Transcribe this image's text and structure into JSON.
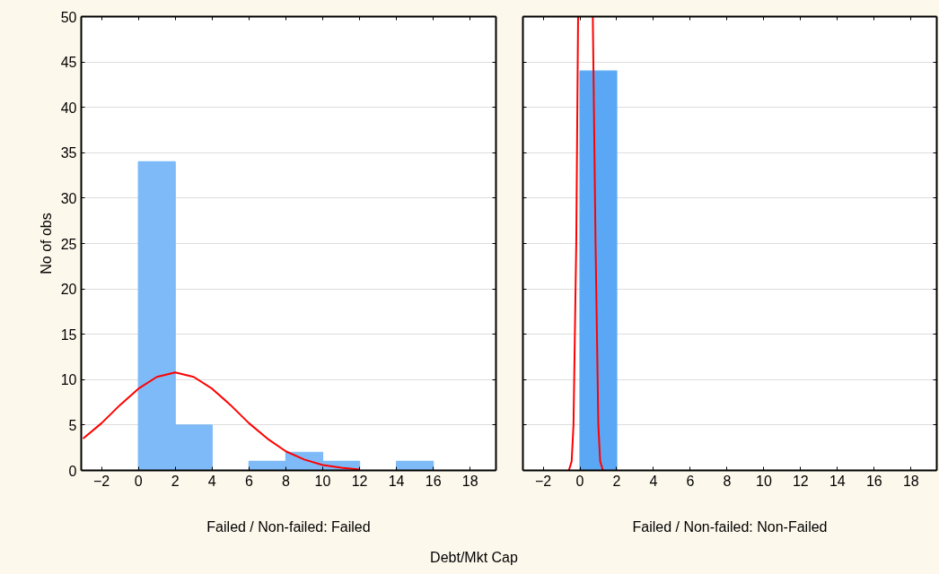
{
  "chart_data": [
    {
      "type": "histogram",
      "xlabel": "Failed / Non-failed: Failed",
      "ylabel": "No of obs",
      "annotations": [
        "Debt/Mkt Cap"
      ],
      "bins": [
        -2,
        0,
        2,
        4,
        6,
        8,
        10,
        12,
        14,
        16,
        18
      ],
      "values": [
        0,
        34,
        5,
        0,
        1,
        2,
        1,
        0,
        1,
        0
      ],
      "color": "#7dbaf7",
      "series": [
        {
          "type": "line",
          "color": "#ff0000",
          "x": [
            -3,
            -2,
            -1,
            0,
            1,
            2,
            3,
            4,
            5,
            6,
            7,
            8,
            9,
            10,
            11,
            12
          ],
          "values": [
            3.5,
            5.2,
            7.2,
            9.0,
            10.3,
            10.8,
            10.3,
            9.0,
            7.2,
            5.2,
            3.5,
            2.1,
            1.2,
            0.6,
            0.3,
            0.1
          ]
        }
      ],
      "xlim": [
        -3.1,
        19.4
      ],
      "ylim": [
        0,
        50
      ],
      "xticks": [
        -2,
        0,
        2,
        4,
        6,
        8,
        10,
        12,
        14,
        16,
        18
      ],
      "yticks": [
        0,
        5,
        10,
        15,
        20,
        25,
        30,
        35,
        40,
        45,
        50
      ],
      "grid": "y"
    },
    {
      "type": "histogram",
      "xlabel": "Failed / Non-failed: Non-Failed",
      "bins": [
        -2,
        0,
        2,
        4,
        6,
        8,
        10,
        12,
        14,
        16,
        18
      ],
      "values": [
        0,
        44,
        0,
        0,
        0,
        0,
        0,
        0,
        0,
        0
      ],
      "color": "#5aa8f5",
      "series": [
        {
          "type": "line",
          "color": "#ff0000",
          "x": [
            -0.6,
            -0.45,
            -0.35,
            -0.2,
            -0.1,
            0.3,
            0.7,
            0.85,
            1.0,
            1.1,
            1.25
          ],
          "values": [
            0,
            1,
            5,
            25,
            50,
            null,
            50,
            25,
            5,
            1,
            0
          ]
        }
      ],
      "xlim": [
        -3.1,
        19.4
      ],
      "ylim": [
        0,
        50
      ],
      "xticks": [
        -2,
        0,
        2,
        4,
        6,
        8,
        10,
        12,
        14,
        16,
        18
      ],
      "yticks": [
        0,
        5,
        10,
        15,
        20,
        25,
        30,
        35,
        40,
        45,
        50
      ],
      "grid": "y",
      "tick_labels": "x"
    }
  ]
}
